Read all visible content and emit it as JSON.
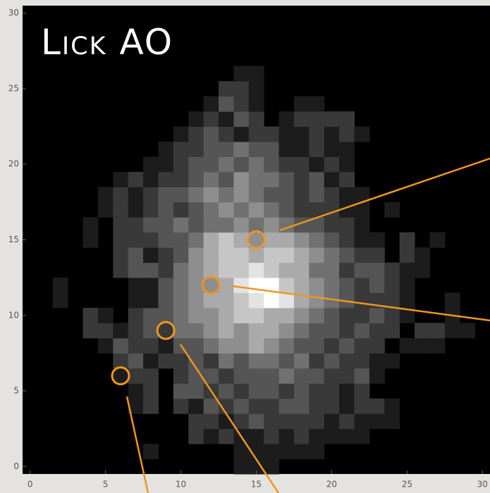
{
  "chart_data": {
    "type": "heatmap",
    "title": "Lick AO",
    "xlim": [
      -0.5,
      30.5
    ],
    "ylim": [
      -0.5,
      30.5
    ],
    "xticks": [
      0,
      5,
      10,
      15,
      20,
      25,
      30
    ],
    "yticks": [
      0,
      5,
      10,
      15,
      20,
      25,
      30
    ],
    "zlim": [
      0,
      9
    ],
    "background": "#000000",
    "markers": {
      "x": [
        15,
        12,
        9,
        6
      ],
      "y": [
        15,
        12,
        9,
        6
      ],
      "color": "#f0961e"
    },
    "z": [
      [
        0,
        0,
        0,
        0,
        0,
        0,
        0,
        0,
        0,
        0,
        0,
        0,
        0,
        0,
        1,
        1,
        1,
        0,
        0,
        0,
        0,
        0,
        0,
        0,
        0,
        0,
        0,
        0,
        0,
        0,
        0
      ],
      [
        0,
        0,
        0,
        0,
        0,
        0,
        0,
        0,
        1,
        0,
        0,
        0,
        0,
        0,
        1,
        1,
        1,
        1,
        1,
        1,
        0,
        0,
        0,
        0,
        0,
        0,
        0,
        0,
        0,
        0,
        0
      ],
      [
        0,
        0,
        0,
        0,
        0,
        0,
        0,
        0,
        0,
        0,
        0,
        2,
        1,
        2,
        1,
        1,
        2,
        1,
        2,
        1,
        1,
        1,
        1,
        0,
        0,
        0,
        0,
        0,
        0,
        0,
        0
      ],
      [
        0,
        0,
        0,
        0,
        0,
        0,
        0,
        0,
        0,
        0,
        0,
        2,
        2,
        1,
        2,
        3,
        2,
        2,
        2,
        2,
        1,
        2,
        1,
        1,
        1,
        0,
        0,
        0,
        0,
        0,
        0
      ],
      [
        0,
        0,
        0,
        0,
        0,
        0,
        0,
        1,
        2,
        0,
        2,
        1,
        3,
        2,
        3,
        2,
        2,
        3,
        3,
        2,
        2,
        1,
        2,
        2,
        1,
        0,
        0,
        0,
        0,
        0,
        0
      ],
      [
        0,
        0,
        0,
        0,
        0,
        0,
        0,
        1,
        2,
        0,
        3,
        3,
        2,
        3,
        2,
        3,
        3,
        2,
        3,
        2,
        2,
        1,
        2,
        0,
        0,
        0,
        0,
        0,
        0,
        0,
        0
      ],
      [
        0,
        0,
        0,
        0,
        0,
        0,
        1,
        2,
        2,
        0,
        2,
        3,
        3,
        2,
        3,
        3,
        3,
        4,
        3,
        3,
        2,
        2,
        3,
        1,
        0,
        0,
        0,
        0,
        0,
        0,
        0
      ],
      [
        0,
        0,
        0,
        0,
        0,
        0,
        2,
        3,
        1,
        2,
        2,
        3,
        2,
        4,
        3,
        4,
        4,
        3,
        4,
        2,
        3,
        2,
        2,
        1,
        1,
        0,
        0,
        0,
        0,
        0,
        0
      ],
      [
        0,
        0,
        0,
        0,
        0,
        1,
        3,
        2,
        2,
        1,
        3,
        3,
        4,
        5,
        5,
        6,
        5,
        4,
        3,
        3,
        2,
        3,
        2,
        2,
        0,
        1,
        1,
        1,
        0,
        0,
        0
      ],
      [
        0,
        0,
        0,
        0,
        2,
        2,
        1,
        2,
        3,
        2,
        4,
        4,
        5,
        6,
        5,
        6,
        6,
        5,
        4,
        3,
        3,
        2,
        3,
        2,
        2,
        0,
        2,
        2,
        1,
        1,
        0
      ],
      [
        0,
        0,
        0,
        0,
        2,
        1,
        0,
        2,
        3,
        3,
        4,
        5,
        5,
        6,
        7,
        7,
        6,
        6,
        5,
        4,
        3,
        2,
        2,
        3,
        2,
        1,
        0,
        0,
        1,
        0,
        0
      ],
      [
        0,
        0,
        1,
        0,
        0,
        0,
        0,
        1,
        1,
        3,
        4,
        5,
        6,
        6,
        7,
        8,
        9,
        8,
        6,
        5,
        4,
        3,
        2,
        2,
        2,
        1,
        0,
        0,
        1,
        0,
        0
      ],
      [
        0,
        0,
        1,
        0,
        0,
        0,
        0,
        1,
        1,
        3,
        4,
        5,
        5,
        6,
        8,
        9,
        9,
        7,
        6,
        5,
        4,
        3,
        2,
        3,
        2,
        1,
        0,
        0,
        0,
        0,
        0
      ],
      [
        0,
        0,
        0,
        0,
        0,
        0,
        2,
        3,
        3,
        2,
        4,
        5,
        6,
        7,
        7,
        8,
        7,
        6,
        6,
        4,
        4,
        2,
        3,
        3,
        2,
        1,
        1,
        0,
        0,
        0,
        0
      ],
      [
        0,
        0,
        0,
        0,
        0,
        0,
        2,
        3,
        1,
        2,
        3,
        5,
        6,
        7,
        7,
        6,
        7,
        7,
        6,
        5,
        4,
        3,
        2,
        2,
        0,
        2,
        1,
        0,
        0,
        0,
        0
      ],
      [
        0,
        0,
        0,
        0,
        1,
        0,
        2,
        2,
        2,
        3,
        3,
        4,
        6,
        7,
        6,
        5,
        6,
        6,
        5,
        4,
        3,
        2,
        1,
        1,
        0,
        2,
        0,
        1,
        0,
        0,
        0
      ],
      [
        0,
        0,
        0,
        0,
        1,
        0,
        2,
        2,
        3,
        3,
        4,
        3,
        4,
        4,
        5,
        4,
        5,
        4,
        3,
        3,
        2,
        2,
        1,
        0,
        0,
        0,
        0,
        0,
        0,
        0,
        0
      ],
      [
        0,
        0,
        0,
        0,
        0,
        1,
        2,
        1,
        2,
        3,
        2,
        3,
        4,
        5,
        4,
        5,
        4,
        3,
        2,
        2,
        2,
        1,
        1,
        0,
        1,
        0,
        0,
        0,
        0,
        0,
        0
      ],
      [
        0,
        0,
        0,
        0,
        0,
        1,
        2,
        1,
        2,
        3,
        3,
        4,
        5,
        4,
        5,
        4,
        3,
        3,
        2,
        3,
        2,
        1,
        1,
        0,
        0,
        0,
        0,
        0,
        0,
        0,
        0
      ],
      [
        0,
        0,
        0,
        0,
        0,
        0,
        1,
        2,
        1,
        2,
        2,
        3,
        4,
        3,
        5,
        4,
        4,
        3,
        2,
        3,
        1,
        2,
        0,
        0,
        0,
        0,
        0,
        0,
        0,
        0,
        0
      ],
      [
        0,
        0,
        0,
        0,
        0,
        0,
        0,
        0,
        1,
        1,
        2,
        3,
        3,
        4,
        3,
        4,
        3,
        2,
        2,
        1,
        2,
        1,
        0,
        0,
        0,
        0,
        0,
        0,
        0,
        0,
        0
      ],
      [
        0,
        0,
        0,
        0,
        0,
        0,
        0,
        0,
        0,
        1,
        2,
        2,
        3,
        3,
        4,
        3,
        3,
        1,
        1,
        2,
        1,
        1,
        0,
        0,
        0,
        0,
        0,
        0,
        0,
        0,
        0
      ],
      [
        0,
        0,
        0,
        0,
        0,
        0,
        0,
        0,
        0,
        0,
        1,
        2,
        3,
        2,
        1,
        2,
        2,
        1,
        1,
        2,
        1,
        2,
        1,
        0,
        0,
        0,
        0,
        0,
        0,
        0,
        0
      ],
      [
        0,
        0,
        0,
        0,
        0,
        0,
        0,
        0,
        0,
        0,
        0,
        1,
        2,
        1,
        3,
        2,
        0,
        1,
        2,
        2,
        2,
        2,
        0,
        0,
        0,
        0,
        0,
        0,
        0,
        0,
        0
      ],
      [
        0,
        0,
        0,
        0,
        0,
        0,
        0,
        0,
        0,
        0,
        0,
        0,
        1,
        3,
        2,
        1,
        0,
        0,
        1,
        1,
        0,
        0,
        0,
        0,
        0,
        0,
        0,
        0,
        0,
        0,
        0
      ],
      [
        0,
        0,
        0,
        0,
        0,
        0,
        0,
        0,
        0,
        0,
        0,
        0,
        0,
        2,
        2,
        1,
        0,
        0,
        0,
        0,
        0,
        0,
        0,
        0,
        0,
        0,
        0,
        0,
        0,
        0,
        0
      ],
      [
        0,
        0,
        0,
        0,
        0,
        0,
        0,
        0,
        0,
        0,
        0,
        0,
        0,
        0,
        1,
        1,
        0,
        0,
        0,
        0,
        0,
        0,
        0,
        0,
        0,
        0,
        0,
        0,
        0,
        0,
        0
      ],
      [
        0,
        0,
        0,
        0,
        0,
        0,
        0,
        0,
        0,
        0,
        0,
        0,
        0,
        0,
        0,
        0,
        0,
        0,
        0,
        0,
        0,
        0,
        0,
        0,
        0,
        0,
        0,
        0,
        0,
        0,
        0
      ],
      [
        0,
        0,
        0,
        0,
        0,
        0,
        0,
        0,
        0,
        0,
        0,
        0,
        0,
        0,
        0,
        0,
        0,
        0,
        0,
        0,
        0,
        0,
        0,
        0,
        0,
        0,
        0,
        0,
        0,
        0,
        0
      ],
      [
        0,
        0,
        0,
        0,
        0,
        0,
        0,
        0,
        0,
        0,
        0,
        0,
        0,
        0,
        0,
        0,
        0,
        0,
        0,
        0,
        0,
        0,
        0,
        0,
        0,
        0,
        0,
        0,
        0,
        0,
        0
      ],
      [
        0,
        0,
        0,
        0,
        0,
        0,
        0,
        0,
        0,
        0,
        0,
        0,
        0,
        0,
        0,
        0,
        0,
        0,
        0,
        0,
        0,
        0,
        0,
        0,
        0,
        0,
        0,
        0,
        0,
        0,
        0
      ]
    ]
  }
}
